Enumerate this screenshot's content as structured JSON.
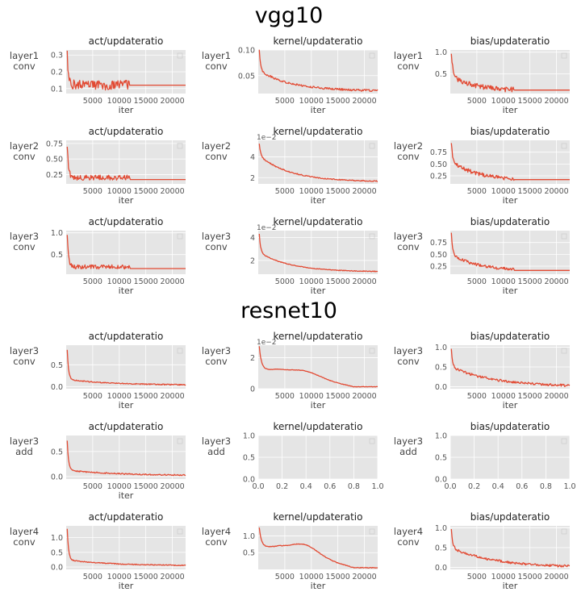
{
  "colors": {
    "line": "#e24a33",
    "panel_bg": "#e5e5e5",
    "grid": "#ffffff",
    "text": "#555555"
  },
  "sections": [
    {
      "title": "vgg10"
    },
    {
      "title": "resnet10"
    }
  ],
  "chart_data": [
    {
      "id": "vgg-l1c-act",
      "section": 0,
      "row": 0,
      "col": 0,
      "type": "line",
      "title": "act/updateratio",
      "row_label": [
        "layer1",
        "conv"
      ],
      "xlabel": "iter",
      "xlim": [
        0,
        22500
      ],
      "ylim": [
        0.07,
        0.33
      ],
      "xticks": [
        5000,
        10000,
        15000,
        20000
      ],
      "xtick_labels": [
        "5000",
        "10000",
        "15000",
        "20000"
      ],
      "yticks": [
        0.1,
        0.2,
        0.3
      ],
      "ytick_labels": [
        "0.1",
        "0.2",
        "0.3"
      ],
      "shape": "noisy_flat",
      "start": 0.3,
      "drop": 0.11,
      "level": 0.12,
      "noise": 0.03,
      "noise_end": 12000,
      "flat": 0.12
    },
    {
      "id": "vgg-l1c-kernel",
      "section": 0,
      "row": 0,
      "col": 1,
      "type": "line",
      "title": "kernel/updateratio",
      "row_label": [
        "layer1",
        "conv"
      ],
      "xlabel": "iter",
      "xlim": [
        0,
        22500
      ],
      "ylim": [
        0.015,
        0.1
      ],
      "xticks": [
        5000,
        10000,
        15000,
        20000
      ],
      "xtick_labels": [
        "5000",
        "10000",
        "15000",
        "20000"
      ],
      "yticks": [
        0.05,
        0.1
      ],
      "ytick_labels": [
        "0.05",
        "0.10"
      ],
      "shape": "decay",
      "start": 0.1,
      "drop": 0.04,
      "floor": 0.02,
      "tau": 6000,
      "noise": 0.002
    },
    {
      "id": "vgg-l1c-bias",
      "section": 0,
      "row": 0,
      "col": 2,
      "type": "line",
      "title": "bias/updateratio",
      "row_label": [
        "layer1",
        "conv"
      ],
      "xlabel": "iter",
      "xlim": [
        0,
        22500
      ],
      "ylim": [
        0.05,
        1.05
      ],
      "xticks": [
        5000,
        10000,
        15000,
        20000
      ],
      "xtick_labels": [
        "5000",
        "10000",
        "15000",
        "20000"
      ],
      "yticks": [
        0.5,
        1.0
      ],
      "ytick_labels": [
        "0.5",
        "1.0"
      ],
      "shape": "noisy_decay",
      "start": 1.0,
      "drop": 0.35,
      "floor": 0.12,
      "tau": 4000,
      "noise": 0.06,
      "noise_end": 12000,
      "flat": 0.13
    },
    {
      "id": "vgg-l2c-act",
      "section": 0,
      "row": 1,
      "col": 0,
      "type": "line",
      "title": "act/updateratio",
      "row_label": [
        "layer2",
        "conv"
      ],
      "xlabel": "iter",
      "xlim": [
        0,
        22500
      ],
      "ylim": [
        0.1,
        0.8
      ],
      "xticks": [
        5000,
        10000,
        15000,
        20000
      ],
      "xtick_labels": [
        "5000",
        "10000",
        "15000",
        "20000"
      ],
      "yticks": [
        0.25,
        0.5,
        0.75
      ],
      "ytick_labels": [
        "0.25",
        "0.50",
        "0.75"
      ],
      "shape": "noisy_flat",
      "start": 0.72,
      "drop": 0.22,
      "level": 0.2,
      "noise": 0.04,
      "noise_end": 12000,
      "flat": 0.17
    },
    {
      "id": "vgg-l2c-kernel",
      "section": 0,
      "row": 1,
      "col": 1,
      "type": "line",
      "title": "kernel/updateratio",
      "row_label": [
        "layer2",
        "conv"
      ],
      "xlabel": "iter",
      "yoffset": "1e−2",
      "xlim": [
        0,
        22500
      ],
      "ylim": [
        1.4,
        5.6
      ],
      "xticks": [
        5000,
        10000,
        15000,
        20000
      ],
      "xtick_labels": [
        "5000",
        "10000",
        "15000",
        "20000"
      ],
      "yticks": [
        2,
        4
      ],
      "ytick_labels": [
        "2",
        "4"
      ],
      "shape": "decay",
      "start": 5.3,
      "drop": 2.5,
      "floor": 1.6,
      "tau": 6000,
      "noise": 0.05
    },
    {
      "id": "vgg-l2c-bias",
      "section": 0,
      "row": 1,
      "col": 2,
      "type": "line",
      "title": "bias/updateratio",
      "row_label": [
        "layer2",
        "conv"
      ],
      "xlabel": "iter",
      "xlim": [
        0,
        22500
      ],
      "ylim": [
        0.08,
        1.0
      ],
      "xticks": [
        5000,
        10000,
        15000,
        20000
      ],
      "xtick_labels": [
        "5000",
        "10000",
        "15000",
        "20000"
      ],
      "yticks": [
        0.25,
        0.5,
        0.75
      ],
      "ytick_labels": [
        "0.25",
        "0.50",
        "0.75"
      ],
      "shape": "noisy_decay",
      "start": 0.95,
      "drop": 0.4,
      "floor": 0.15,
      "tau": 5000,
      "noise": 0.04,
      "noise_end": 12000,
      "flat": 0.17
    },
    {
      "id": "vgg-l3c-act",
      "section": 0,
      "row": 2,
      "col": 0,
      "type": "line",
      "title": "act/updateratio",
      "row_label": [
        "layer3",
        "conv"
      ],
      "xlabel": "iter",
      "xlim": [
        0,
        22500
      ],
      "ylim": [
        0.05,
        1.05
      ],
      "xticks": [
        5000,
        10000,
        15000,
        20000
      ],
      "xtick_labels": [
        "5000",
        "10000",
        "15000",
        "20000"
      ],
      "yticks": [
        0.5,
        1.0
      ],
      "ytick_labels": [
        "0.5",
        "1.0"
      ],
      "shape": "noisy_flat",
      "start": 0.95,
      "drop": 0.26,
      "level": 0.22,
      "noise": 0.05,
      "noise_end": 12000,
      "flat": 0.18
    },
    {
      "id": "vgg-l3c-kernel",
      "section": 0,
      "row": 2,
      "col": 1,
      "type": "line",
      "title": "kernel/updateratio",
      "row_label": [
        "layer3",
        "conv"
      ],
      "xlabel": "iter",
      "yoffset": "1e−2",
      "xlim": [
        0,
        22500
      ],
      "ylim": [
        0.8,
        4.6
      ],
      "xticks": [
        5000,
        10000,
        15000,
        20000
      ],
      "xtick_labels": [
        "5000",
        "10000",
        "15000",
        "20000"
      ],
      "yticks": [
        2,
        4
      ],
      "ytick_labels": [
        "2",
        "4"
      ],
      "shape": "decay",
      "start": 4.3,
      "drop": 1.7,
      "floor": 1.0,
      "tau": 6000,
      "noise": 0.03
    },
    {
      "id": "vgg-l3c-bias",
      "section": 0,
      "row": 2,
      "col": 2,
      "type": "line",
      "title": "bias/updateratio",
      "row_label": [
        "layer3",
        "conv"
      ],
      "xlabel": "iter",
      "xlim": [
        0,
        22500
      ],
      "ylim": [
        0.08,
        1.0
      ],
      "xticks": [
        5000,
        10000,
        15000,
        20000
      ],
      "xtick_labels": [
        "5000",
        "10000",
        "15000",
        "20000"
      ],
      "yticks": [
        0.25,
        0.5,
        0.75
      ],
      "ytick_labels": [
        "0.25",
        "0.50",
        "0.75"
      ],
      "shape": "noisy_decay",
      "start": 0.95,
      "drop": 0.35,
      "floor": 0.15,
      "tau": 5000,
      "noise": 0.03,
      "noise_end": 12000,
      "flat": 0.16
    },
    {
      "id": "res-l3c-act",
      "section": 1,
      "row": 0,
      "col": 0,
      "type": "line",
      "title": "act/updateratio",
      "row_label": [
        "layer3",
        "conv"
      ],
      "xlabel": "iter",
      "xlim": [
        0,
        22500
      ],
      "ylim": [
        -0.05,
        0.95
      ],
      "xticks": [
        5000,
        10000,
        15000,
        20000
      ],
      "xtick_labels": [
        "5000",
        "10000",
        "15000",
        "20000"
      ],
      "yticks": [
        0.0,
        0.5
      ],
      "ytick_labels": [
        "0.0",
        "0.5"
      ],
      "shape": "decay",
      "start": 0.85,
      "drop": 0.13,
      "floor": 0.03,
      "tau": 9000,
      "noise": 0.012
    },
    {
      "id": "res-l3c-kernel",
      "section": 1,
      "row": 0,
      "col": 1,
      "type": "line",
      "title": "kernel/updateratio",
      "row_label": [
        "layer3",
        "conv"
      ],
      "xlabel": "iter",
      "yoffset": "1e−2",
      "xlim": [
        0,
        22500
      ],
      "ylim": [
        0.0,
        2.8
      ],
      "xticks": [
        5000,
        10000,
        15000,
        20000
      ],
      "xtick_labels": [
        "5000",
        "10000",
        "15000",
        "20000"
      ],
      "yticks": [
        0,
        2
      ],
      "ytick_labels": [
        "0",
        "2"
      ],
      "shape": "hump",
      "start": 2.6,
      "drop": 1.1,
      "floor": 0.25,
      "tau": 9000,
      "hump_amp": 0.3,
      "hump_center": 9000,
      "hump_width": 3500,
      "noise": 0.015
    },
    {
      "id": "res-l3c-bias",
      "section": 1,
      "row": 0,
      "col": 2,
      "type": "line",
      "title": "bias/updateratio",
      "row_label": [
        "layer3",
        "conv"
      ],
      "xlabel": "iter",
      "xlim": [
        0,
        22500
      ],
      "ylim": [
        -0.05,
        1.05
      ],
      "xticks": [
        5000,
        10000,
        15000,
        20000
      ],
      "xtick_labels": [
        "5000",
        "10000",
        "15000",
        "20000"
      ],
      "yticks": [
        0.0,
        0.5,
        1.0
      ],
      "ytick_labels": [
        "0.0",
        "0.5",
        "1.0"
      ],
      "shape": "decay",
      "start": 0.95,
      "drop": 0.5,
      "floor": 0.0,
      "tau": 8000,
      "noise": 0.03
    },
    {
      "id": "res-l3a-act",
      "section": 1,
      "row": 1,
      "col": 0,
      "type": "line",
      "title": "act/updateratio",
      "row_label": [
        "layer3",
        "add"
      ],
      "xlabel": "iter",
      "xlim": [
        0,
        22500
      ],
      "ylim": [
        -0.05,
        0.82
      ],
      "xticks": [
        5000,
        10000,
        15000,
        20000
      ],
      "xtick_labels": [
        "5000",
        "10000",
        "15000",
        "20000"
      ],
      "yticks": [
        0.0,
        0.5
      ],
      "ytick_labels": [
        "0.0",
        "0.5"
      ],
      "shape": "decay",
      "start": 0.72,
      "drop": 0.11,
      "floor": 0.02,
      "tau": 9000,
      "noise": 0.012
    },
    {
      "id": "res-l3a-kernel",
      "section": 1,
      "row": 1,
      "col": 1,
      "type": "empty",
      "title": "kernel/updateratio",
      "row_label": [
        "layer3",
        "add"
      ],
      "xlim": [
        0,
        1
      ],
      "ylim": [
        0,
        1
      ],
      "xticks": [
        0,
        0.2,
        0.4,
        0.6,
        0.8,
        1.0
      ],
      "xtick_labels": [
        "0.0",
        "0.2",
        "0.4",
        "0.6",
        "0.8",
        "1.0"
      ],
      "yticks": [
        0,
        0.5,
        1.0
      ],
      "ytick_labels": [
        "0.0",
        "0.5",
        "1.0"
      ]
    },
    {
      "id": "res-l3a-bias",
      "section": 1,
      "row": 1,
      "col": 2,
      "type": "empty",
      "title": "bias/updateratio",
      "row_label": [
        "layer3",
        "add"
      ],
      "xlim": [
        0,
        1
      ],
      "ylim": [
        0,
        1
      ],
      "xticks": [
        0,
        0.2,
        0.4,
        0.6,
        0.8,
        1.0
      ],
      "xtick_labels": [
        "0.0",
        "0.2",
        "0.4",
        "0.6",
        "0.8",
        "1.0"
      ],
      "yticks": [
        0,
        0.5,
        1.0
      ],
      "ytick_labels": [
        "0.0",
        "0.5",
        "1.0"
      ]
    },
    {
      "id": "res-l4c-act",
      "section": 1,
      "row": 2,
      "col": 0,
      "type": "line",
      "title": "act/updateratio",
      "row_label": [
        "layer4",
        "conv"
      ],
      "xlabel": "iter",
      "xlim": [
        0,
        22500
      ],
      "ylim": [
        -0.08,
        1.4
      ],
      "xticks": [
        5000,
        10000,
        15000,
        20000
      ],
      "xtick_labels": [
        "5000",
        "10000",
        "15000",
        "20000"
      ],
      "yticks": [
        0.0,
        0.5,
        1.0
      ],
      "ytick_labels": [
        "0.0",
        "0.5",
        "1.0"
      ],
      "shape": "decay",
      "start": 1.3,
      "drop": 0.2,
      "floor": 0.04,
      "tau": 9000,
      "noise": 0.015
    },
    {
      "id": "res-l4c-kernel",
      "section": 1,
      "row": 2,
      "col": 1,
      "type": "line",
      "title": "kernel/updateratio",
      "row_label": [
        "layer4",
        "conv"
      ],
      "xlabel": "iter",
      "xlim": [
        0,
        22500
      ],
      "ylim": [
        0.0,
        1.3
      ],
      "xticks": [
        5000,
        10000,
        15000,
        20000
      ],
      "xtick_labels": [
        "5000",
        "10000",
        "15000",
        "20000"
      ],
      "yticks": [
        0.5,
        1.0
      ],
      "ytick_labels": [
        "0.5",
        "1.0"
      ],
      "shape": "hump",
      "start": 1.2,
      "drop": 0.62,
      "floor": 0.1,
      "tau": 8000,
      "hump_amp": 0.28,
      "hump_center": 8800,
      "hump_width": 3500,
      "noise": 0.01
    },
    {
      "id": "res-l4c-bias",
      "section": 1,
      "row": 2,
      "col": 2,
      "type": "line",
      "title": "bias/updateratio",
      "row_label": [
        "layer4",
        "conv"
      ],
      "xlabel": "iter",
      "xlim": [
        0,
        22500
      ],
      "ylim": [
        -0.05,
        1.05
      ],
      "xticks": [
        5000,
        10000,
        15000,
        20000
      ],
      "xtick_labels": [
        "5000",
        "10000",
        "15000",
        "20000"
      ],
      "yticks": [
        0.0,
        0.5,
        1.0
      ],
      "ytick_labels": [
        "0.0",
        "0.5",
        "1.0"
      ],
      "shape": "decay",
      "start": 0.95,
      "drop": 0.5,
      "floor": 0.0,
      "tau": 8000,
      "noise": 0.03
    }
  ]
}
